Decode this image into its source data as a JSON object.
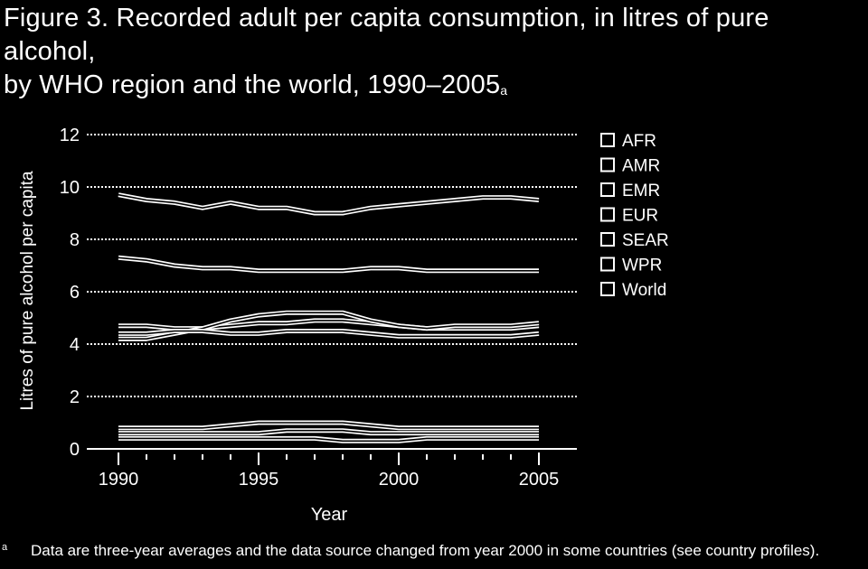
{
  "title": {
    "line1": "Figure 3. Recorded adult per capita consumption, in litres of pure alcohol,",
    "line2": "by WHO region and the world, 1990–2005",
    "superscript": "a"
  },
  "footnote": {
    "marker": "a",
    "text": "Data are three-year averages and the data source changed from year 2000 in some countries (see country profiles)."
  },
  "chart_data": {
    "type": "line",
    "title": "Figure 3. Recorded adult per capita consumption, in litres of pure alcohol, by WHO region and the world, 1990–2005",
    "xlabel": "Year",
    "ylabel": "Litres of pure alcohol per capita",
    "xlim": [
      1990,
      2005
    ],
    "ylim": [
      0,
      12
    ],
    "xticks": [
      1990,
      1995,
      2000,
      2005
    ],
    "yticks": [
      0,
      2,
      4,
      6,
      8,
      10,
      12
    ],
    "grid": "dotted horizontal",
    "legend_position": "right",
    "legend": [
      "AFR",
      "AMR",
      "EMR",
      "EUR",
      "SEAR",
      "WPR",
      "World"
    ],
    "x": [
      1990,
      1991,
      1992,
      1993,
      1994,
      1995,
      1996,
      1997,
      1998,
      1999,
      2000,
      2001,
      2002,
      2003,
      2004,
      2005
    ],
    "series": [
      {
        "name": "EUR",
        "values": [
          9.7,
          9.5,
          9.4,
          9.2,
          9.4,
          9.2,
          9.2,
          9.0,
          9.0,
          9.2,
          9.3,
          9.4,
          9.5,
          9.6,
          9.6,
          9.5
        ]
      },
      {
        "name": "AMR",
        "values": [
          7.3,
          7.2,
          7.0,
          6.9,
          6.9,
          6.8,
          6.8,
          6.8,
          6.8,
          6.9,
          6.9,
          6.8,
          6.8,
          6.8,
          6.8,
          6.8
        ]
      },
      {
        "name": "AFR",
        "values": [
          4.7,
          4.7,
          4.6,
          4.6,
          4.7,
          4.8,
          4.8,
          4.9,
          4.9,
          4.8,
          4.7,
          4.6,
          4.6,
          4.6,
          4.6,
          4.7
        ]
      },
      {
        "name": "WPR",
        "values": [
          4.2,
          4.2,
          4.4,
          4.6,
          4.9,
          5.1,
          5.2,
          5.2,
          5.2,
          4.9,
          4.7,
          4.6,
          4.7,
          4.7,
          4.7,
          4.8
        ]
      },
      {
        "name": "World",
        "values": [
          4.4,
          4.4,
          4.5,
          4.5,
          4.4,
          4.4,
          4.5,
          4.5,
          4.5,
          4.4,
          4.3,
          4.3,
          4.3,
          4.3,
          4.3,
          4.4
        ]
      },
      {
        "name": "SEAR",
        "values": [
          0.4,
          0.4,
          0.4,
          0.4,
          0.4,
          0.4,
          0.4,
          0.4,
          0.3,
          0.3,
          0.3,
          0.4,
          0.4,
          0.4,
          0.4,
          0.4
        ]
      },
      {
        "name": "EMR",
        "values": [
          0.8,
          0.8,
          0.8,
          0.8,
          0.9,
          1.0,
          1.0,
          1.0,
          1.0,
          0.9,
          0.8,
          0.8,
          0.8,
          0.8,
          0.8,
          0.8
        ]
      }
    ],
    "extra_series": {
      "name": "",
      "values": [
        0.6,
        0.6,
        0.6,
        0.6,
        0.6,
        0.6,
        0.7,
        0.7,
        0.7,
        0.6,
        0.6,
        0.6,
        0.6,
        0.6,
        0.6,
        0.6
      ]
    }
  }
}
